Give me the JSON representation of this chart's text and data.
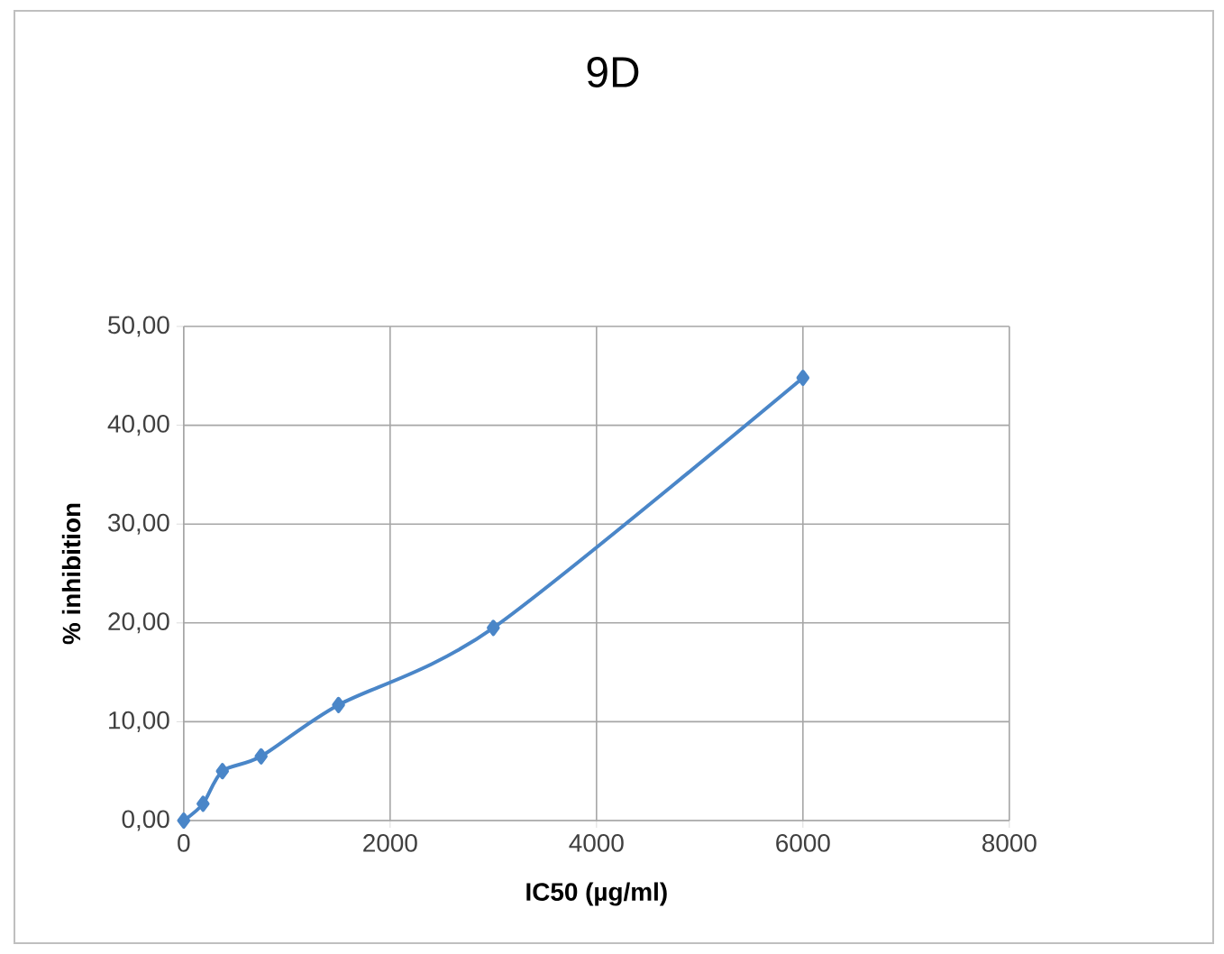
{
  "chart_data": {
    "type": "line",
    "title": "9D",
    "xlabel": "IC50 (µg/ml)",
    "ylabel": "% inhibition",
    "x": [
      0,
      187.5,
      375,
      750,
      1500,
      3000,
      6000
    ],
    "series": [
      {
        "color": "#4a86c8",
        "values": [
          0,
          1.7,
          5.0,
          6.5,
          11.7,
          19.5,
          44.8
        ]
      }
    ],
    "xlim": [
      0,
      8000
    ],
    "xticks": [
      0,
      2000,
      4000,
      6000,
      8000
    ],
    "ylim": [
      0,
      50
    ],
    "yticks": [
      {
        "value": 0,
        "label": "0,00"
      },
      {
        "value": 10,
        "label": "10,00"
      },
      {
        "value": 20,
        "label": "20,00"
      },
      {
        "value": 30,
        "label": "30,00"
      },
      {
        "value": 40,
        "label": "40,00"
      },
      {
        "value": 50,
        "label": "50,00"
      }
    ],
    "grid": true,
    "marker": "diamond",
    "line_style": "solid"
  }
}
